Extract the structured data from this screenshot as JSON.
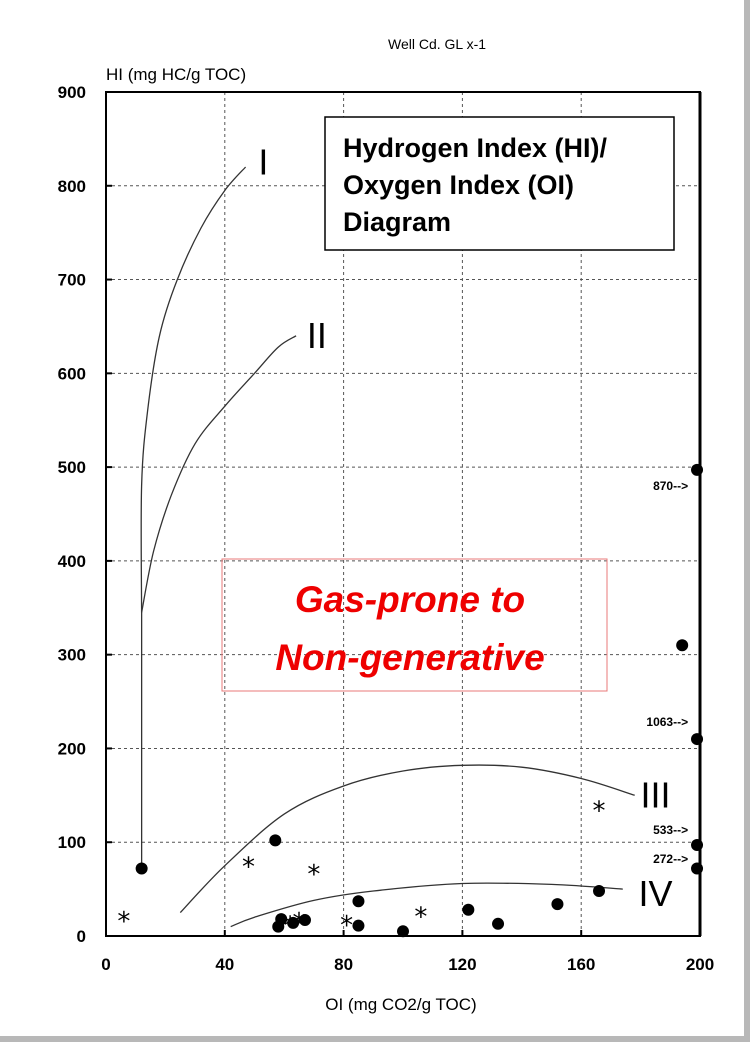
{
  "chart_data": {
    "type": "scatter",
    "caption": "Well Cd. GL x-1",
    "xlabel": "OI (mg CO2/g TOC)",
    "ylabel": "HI (mg HC/g TOC)",
    "xlim": [
      0,
      200
    ],
    "ylim": [
      0,
      900
    ],
    "x_ticks": [
      0,
      40,
      80,
      120,
      160,
      200
    ],
    "y_ticks": [
      0,
      100,
      200,
      300,
      400,
      500,
      600,
      700,
      800,
      900
    ],
    "grid": true,
    "inset_title": [
      "Hydrogen Index (HI)/",
      "Oxygen Index (OI)",
      "Diagram"
    ],
    "zone_label": [
      "Gas-prone to",
      "Non-generative"
    ],
    "kerogen_curves": [
      {
        "label": "I",
        "points": [
          [
            12,
            345
          ],
          [
            12,
            480
          ],
          [
            14,
            560
          ],
          [
            18,
            640
          ],
          [
            24,
            700
          ],
          [
            32,
            755
          ],
          [
            40,
            795
          ],
          [
            47,
            820
          ]
        ],
        "label_pos": [
          53,
          825
        ]
      },
      {
        "label": "II",
        "points": [
          [
            12,
            345
          ],
          [
            16,
            410
          ],
          [
            22,
            470
          ],
          [
            30,
            525
          ],
          [
            40,
            565
          ],
          [
            50,
            600
          ],
          [
            58,
            628
          ],
          [
            64,
            640
          ]
        ],
        "label_pos": [
          71,
          640
        ]
      },
      {
        "label": "III",
        "points": [
          [
            25,
            25
          ],
          [
            40,
            75
          ],
          [
            60,
            130
          ],
          [
            80,
            160
          ],
          [
            100,
            176
          ],
          [
            120,
            182
          ],
          [
            140,
            180
          ],
          [
            160,
            168
          ],
          [
            178,
            150
          ]
        ],
        "label_pos": [
          185,
          150
        ]
      },
      {
        "label": "IV",
        "points": [
          [
            42,
            10
          ],
          [
            50,
            20
          ],
          [
            70,
            38
          ],
          [
            90,
            48
          ],
          [
            120,
            56
          ],
          [
            150,
            55
          ],
          [
            174,
            50
          ]
        ],
        "label_pos": [
          185,
          45
        ]
      }
    ],
    "type_I_stem": [
      [
        12,
        345
      ],
      [
        12,
        75
      ]
    ],
    "series": [
      {
        "marker": "circle",
        "points": [
          [
            12,
            72
          ],
          [
            57,
            102
          ],
          [
            58,
            10
          ],
          [
            59,
            18
          ],
          [
            63,
            14
          ],
          [
            67,
            17
          ],
          [
            85,
            37
          ],
          [
            85,
            11
          ],
          [
            100,
            5
          ],
          [
            122,
            28
          ],
          [
            132,
            13
          ],
          [
            152,
            34
          ],
          [
            166,
            48
          ],
          [
            194,
            310
          ],
          [
            199,
            497
          ],
          [
            199,
            210
          ],
          [
            199,
            97
          ],
          [
            199,
            72
          ]
        ]
      },
      {
        "marker": "star",
        "points": [
          [
            6,
            17
          ],
          [
            48,
            75
          ],
          [
            70,
            67
          ],
          [
            62,
            12
          ],
          [
            65,
            16
          ],
          [
            81,
            13
          ],
          [
            106,
            22
          ],
          [
            166,
            135
          ]
        ]
      }
    ],
    "annotations": [
      {
        "text": "870-->",
        "x": 196,
        "y": 480
      },
      {
        "text": "1063-->",
        "x": 196,
        "y": 228
      },
      {
        "text": "533-->",
        "x": 196,
        "y": 113
      },
      {
        "text": "272-->",
        "x": 196,
        "y": 82
      }
    ]
  }
}
